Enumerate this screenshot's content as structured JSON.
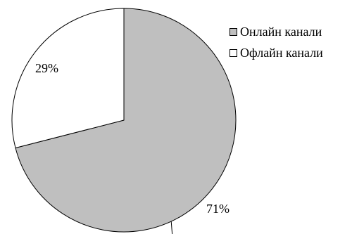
{
  "chart_data": {
    "type": "pie",
    "categories": [
      "Онлайн канали",
      "Офлайн канали"
    ],
    "values": [
      71,
      29
    ],
    "data_labels": [
      "71%",
      "29%"
    ],
    "colors": [
      "#bfbfbf",
      "#ffffff"
    ],
    "edge_color": "#000000",
    "start": "12 o'clock, clockwise",
    "legend": "right"
  }
}
